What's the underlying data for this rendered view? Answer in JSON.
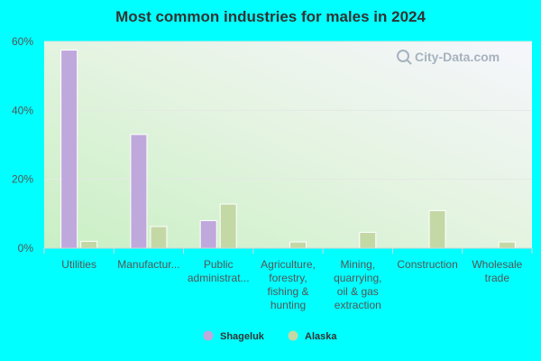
{
  "chart_data": {
    "type": "bar",
    "title": "Most common industries for males in 2024",
    "categories": [
      [
        "Utilities"
      ],
      [
        "Manufactur..."
      ],
      [
        "Public",
        "administrat..."
      ],
      [
        "Agriculture,",
        "forestry,",
        "fishing &",
        "hunting"
      ],
      [
        "Mining,",
        "quarrying,",
        "oil & gas",
        "extraction"
      ],
      [
        "Construction"
      ],
      [
        "Wholesale",
        "trade"
      ]
    ],
    "series": [
      {
        "name": "Shageluk",
        "color": "#bfa8dc",
        "values": [
          57.5,
          33.0,
          8.0,
          0,
          0,
          0,
          0
        ]
      },
      {
        "name": "Alaska",
        "color": "#c4d8a6",
        "values": [
          2.0,
          6.3,
          12.8,
          1.8,
          4.6,
          10.9,
          1.8
        ]
      }
    ],
    "yticks": [
      "60%",
      "40%",
      "20%",
      "0%"
    ],
    "ytick_values": [
      60,
      40,
      20,
      0
    ],
    "ylim": [
      0,
      60
    ],
    "grid": true,
    "legend_position": "bottom-center",
    "watermark": "City-Data.com"
  }
}
